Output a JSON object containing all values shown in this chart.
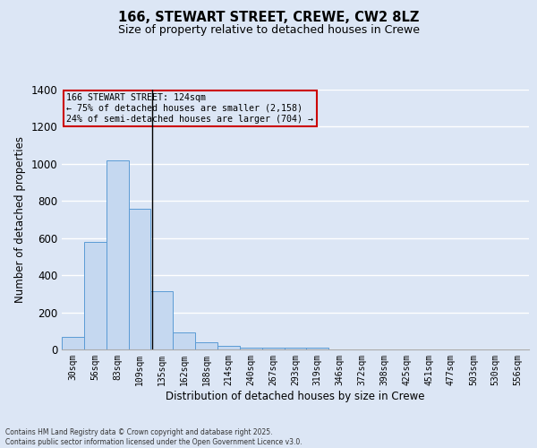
{
  "title1": "166, STEWART STREET, CREWE, CW2 8LZ",
  "title2": "Size of property relative to detached houses in Crewe",
  "xlabel": "Distribution of detached houses by size in Crewe",
  "ylabel": "Number of detached properties",
  "categories": [
    "30sqm",
    "56sqm",
    "83sqm",
    "109sqm",
    "135sqm",
    "162sqm",
    "188sqm",
    "214sqm",
    "240sqm",
    "267sqm",
    "293sqm",
    "319sqm",
    "346sqm",
    "372sqm",
    "398sqm",
    "425sqm",
    "451sqm",
    "477sqm",
    "503sqm",
    "530sqm",
    "556sqm"
  ],
  "values": [
    67,
    580,
    1020,
    760,
    315,
    90,
    37,
    20,
    10,
    10,
    8,
    10,
    0,
    0,
    0,
    0,
    0,
    0,
    0,
    0,
    0
  ],
  "bar_color": "#c5d8f0",
  "bar_edge_color": "#5b9bd5",
  "bg_color": "#dce6f5",
  "grid_color": "#ffffff",
  "property_label": "166 STEWART STREET: 124sqm",
  "annotation_line1": "← 75% of detached houses are smaller (2,158)",
  "annotation_line2": "24% of semi-detached houses are larger (704) →",
  "annotation_box_color": "#cc0000",
  "ylim": [
    0,
    1400
  ],
  "yticks": [
    0,
    200,
    400,
    600,
    800,
    1000,
    1200,
    1400
  ],
  "footer1": "Contains HM Land Registry data © Crown copyright and database right 2025.",
  "footer2": "Contains public sector information licensed under the Open Government Licence v3.0."
}
